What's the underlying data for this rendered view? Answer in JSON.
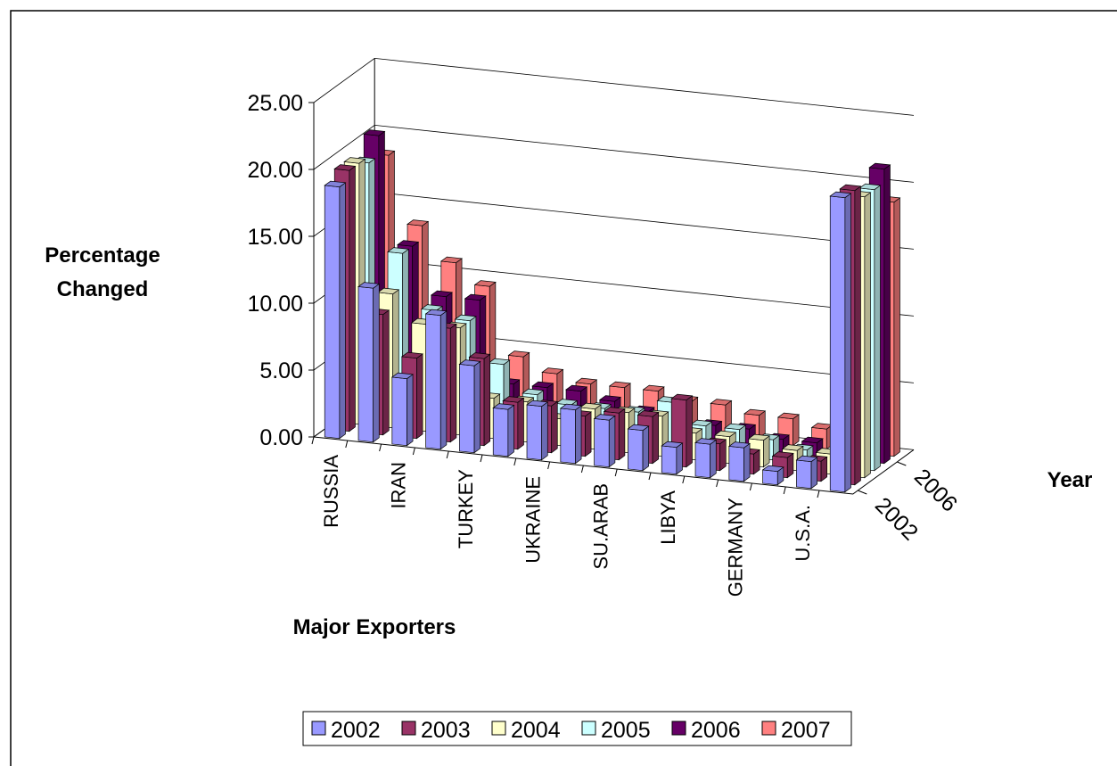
{
  "chart_data": {
    "type": "bar3d",
    "y_label": "Percentage Changed",
    "x_label": "Major Exporters",
    "z_label": "Year",
    "categories": [
      "RUSSIA",
      null,
      "IRAN",
      null,
      "TURKEY",
      null,
      "UKRAINE",
      null,
      "SU.ARAB",
      null,
      "LIBYA",
      null,
      "GERMANY",
      null,
      "U.S.A.",
      null
    ],
    "series": [
      {
        "name": "2002",
        "color": "#9999ff",
        "values": [
          18.8,
          11.5,
          5,
          10,
          6.5,
          3.5,
          4,
          4,
          3.5,
          3,
          2,
          2.5,
          2.5,
          1,
          2,
          22
        ]
      },
      {
        "name": "2003",
        "color": "#993366",
        "values": [
          19.5,
          9,
          6,
          8.5,
          6.5,
          3.5,
          3.5,
          3,
          3.5,
          3.5,
          5,
          2,
          1.5,
          1.5,
          1.5,
          22
        ]
      },
      {
        "name": "2004",
        "color": "#ffffcc",
        "values": [
          19.5,
          10,
          8,
          8,
          3,
          3,
          2,
          3,
          3,
          3,
          2,
          2,
          2,
          1.5,
          1.5,
          21
        ]
      },
      {
        "name": "2005",
        "color": "#ccffff",
        "values": [
          19,
          12.5,
          8.5,
          8,
          5,
          3,
          2.5,
          2.5,
          2.5,
          3.5,
          2,
          2,
          1.5,
          1,
          1,
          21
        ]
      },
      {
        "name": "2006",
        "color": "#660066",
        "values": [
          20.5,
          12.5,
          9,
          9,
          3,
          3,
          3,
          2.5,
          2,
          2,
          1.5,
          1.5,
          1,
          1,
          1,
          22
        ]
      },
      {
        "name": "2007",
        "color": "#ff8080",
        "values": [
          18.5,
          13.5,
          11,
          9.5,
          4.5,
          3.5,
          3,
          3,
          3,
          2.5,
          2.5,
          2,
          2,
          1.5,
          1,
          19
        ]
      }
    ],
    "depth_labels": [
      0,
      4
    ],
    "ylim": [
      0,
      25
    ],
    "yticks": [
      {
        "value": 0,
        "label": "0.00"
      },
      {
        "value": 5,
        "label": "5.00"
      },
      {
        "value": 10,
        "label": "10.00"
      },
      {
        "value": 15,
        "label": "15.00"
      },
      {
        "value": 20,
        "label": "20.00"
      },
      {
        "value": 25,
        "label": "25.00"
      }
    ],
    "grid": true,
    "legend": "bottom"
  }
}
